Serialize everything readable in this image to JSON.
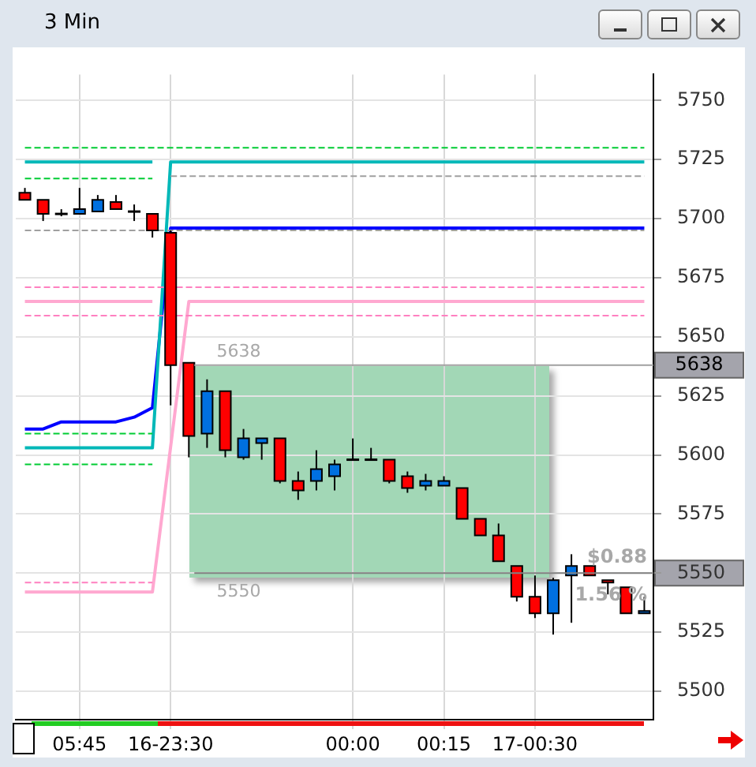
{
  "chart_data": {
    "type": "candlestick",
    "title": "3 Min",
    "categories": [
      null,
      null,
      null,
      "05:45",
      null,
      null,
      null,
      null,
      "16-23:30",
      null,
      null,
      null,
      null,
      null,
      null,
      null,
      null,
      null,
      "00:00",
      null,
      null,
      null,
      null,
      "00:15",
      null,
      null,
      null,
      null,
      "17-00:30",
      null,
      null,
      null,
      null,
      null,
      null
    ],
    "ohlc": [
      [
        5711,
        5713,
        5708,
        5708
      ],
      [
        5708,
        5708,
        5699,
        5702
      ],
      [
        5702,
        5704,
        5701,
        5702
      ],
      [
        5702,
        5713,
        5702,
        5704
      ],
      [
        5703,
        5710,
        5703,
        5708
      ],
      [
        5707,
        5710,
        5704,
        5704
      ],
      [
        5703,
        5706,
        5699,
        5703
      ],
      [
        5702,
        5702,
        5692,
        5695
      ],
      [
        5694,
        5695,
        5621,
        5638
      ],
      [
        5639,
        5639,
        5599,
        5608
      ],
      [
        5609,
        5632,
        5603,
        5627
      ],
      [
        5627,
        5627,
        5599,
        5602
      ],
      [
        5599,
        5611,
        5598,
        5607
      ],
      [
        5605,
        5607,
        5598,
        5607
      ],
      [
        5607,
        5607,
        5588,
        5589
      ],
      [
        5589,
        5593,
        5581,
        5585
      ],
      [
        5589,
        5602,
        5585,
        5594
      ],
      [
        5591,
        5598,
        5585,
        5596
      ],
      [
        5598,
        5607,
        5598,
        5598
      ],
      [
        5598,
        5603,
        5598,
        5598
      ],
      [
        5598,
        5598,
        5588,
        5589
      ],
      [
        5591,
        5593,
        5584,
        5586
      ],
      [
        5587,
        5592,
        5585,
        5589
      ],
      [
        5587,
        5591,
        5587,
        5589
      ],
      [
        5586,
        5586,
        5573,
        5573
      ],
      [
        5573,
        5573,
        5566,
        5566
      ],
      [
        5566,
        5571,
        5555,
        5555
      ],
      [
        5553,
        5553,
        5538,
        5540
      ],
      [
        5540,
        5549,
        5531,
        5533
      ],
      [
        5533,
        5548,
        5524,
        5547
      ],
      [
        5549,
        5558,
        5529,
        5553
      ],
      [
        5553,
        5553,
        5549,
        5549
      ],
      [
        5547,
        5547,
        5541,
        5546
      ],
      [
        5544,
        5544,
        5533,
        5533
      ],
      [
        5533,
        5540,
        5533,
        5534
      ]
    ],
    "series": [
      {
        "type": "line",
        "line_style": "dashed",
        "color": "#00cc33",
        "values": [
          5730,
          5730,
          5730,
          5730,
          5730,
          5730,
          5730,
          5730,
          5730,
          5730,
          5730,
          5730,
          5730,
          5730,
          5730,
          5730,
          5730,
          5730,
          5730,
          5730,
          5730,
          5730,
          5730,
          5730,
          5730,
          5730,
          5730,
          5730,
          5730,
          5730,
          5730,
          5730,
          5730,
          5730,
          5730
        ]
      },
      {
        "type": "line",
        "line_style": "dashed",
        "color": "#00cc33",
        "values": [
          5717,
          5717,
          5717,
          5717,
          5717,
          5717,
          5717,
          5717,
          null,
          null,
          null,
          null,
          null,
          null,
          null,
          null,
          null,
          null,
          null,
          null,
          null,
          null,
          null,
          null,
          null,
          null,
          null,
          null,
          null,
          null,
          null,
          null,
          null,
          null,
          null
        ]
      },
      {
        "type": "line",
        "line_style": "dashed",
        "color": "#00cc33",
        "values": [
          5609,
          5609,
          5609,
          5609,
          5609,
          5609,
          5609,
          5609,
          null,
          null,
          null,
          null,
          null,
          null,
          null,
          null,
          null,
          null,
          null,
          null,
          null,
          null,
          null,
          null,
          null,
          null,
          null,
          null,
          null,
          null,
          null,
          null,
          null,
          null,
          null
        ]
      },
      {
        "type": "line",
        "line_style": "dashed",
        "color": "#00cc33",
        "values": [
          5596,
          5596,
          5596,
          5596,
          5596,
          5596,
          5596,
          5596,
          null,
          null,
          null,
          null,
          null,
          null,
          null,
          null,
          null,
          null,
          null,
          null,
          null,
          null,
          null,
          null,
          null,
          null,
          null,
          null,
          null,
          null,
          null,
          null,
          null,
          null,
          null
        ]
      },
      {
        "type": "line",
        "line_style": "dashed",
        "color": "#a0a0a0",
        "values": [
          null,
          null,
          null,
          null,
          null,
          null,
          null,
          null,
          5718,
          5718,
          5718,
          5718,
          5718,
          5718,
          5718,
          5718,
          5718,
          5718,
          5718,
          5718,
          5718,
          5718,
          5718,
          5718,
          5718,
          5718,
          5718,
          5718,
          5718,
          5718,
          5718,
          5718,
          5718,
          5718,
          5718
        ]
      },
      {
        "type": "line",
        "line_style": "dashed",
        "color": "#a0a0a0",
        "values": [
          5695,
          5695,
          5695,
          5695,
          5695,
          5695,
          5695,
          5695,
          5695,
          5695,
          5695,
          5695,
          5695,
          5695,
          5695,
          5695,
          5695,
          5695,
          5695,
          5695,
          5695,
          5695,
          5695,
          5695,
          5695,
          5695,
          5695,
          5695,
          5695,
          5695,
          5695,
          5695,
          5695,
          5695,
          5695
        ]
      },
      {
        "type": "line",
        "line_style": "dashed",
        "color": "#ff80c0",
        "values": [
          5671,
          5671,
          5671,
          5671,
          5671,
          5671,
          5671,
          5671,
          null,
          5671,
          5671,
          5671,
          5671,
          5671,
          5671,
          5671,
          5671,
          5671,
          5671,
          5671,
          5671,
          5671,
          5671,
          5671,
          5671,
          5671,
          5671,
          5671,
          5671,
          5671,
          5671,
          5671,
          5671,
          5671,
          5671
        ]
      },
      {
        "type": "line",
        "line_style": "dashed",
        "color": "#ff80c0",
        "values": [
          5659,
          5659,
          5659,
          5659,
          5659,
          5659,
          5659,
          5659,
          null,
          5659,
          5659,
          5659,
          5659,
          5659,
          5659,
          5659,
          5659,
          5659,
          5659,
          5659,
          5659,
          5659,
          5659,
          5659,
          5659,
          5659,
          5659,
          5659,
          5659,
          5659,
          5659,
          5659,
          5659,
          5659,
          5659
        ]
      },
      {
        "type": "line",
        "line_style": "dashed",
        "color": "#ff80c0",
        "values": [
          5546,
          5546,
          5546,
          5546,
          5546,
          5546,
          5546,
          5546,
          null,
          null,
          null,
          null,
          null,
          null,
          null,
          null,
          null,
          null,
          null,
          null,
          null,
          null,
          null,
          null,
          null,
          null,
          null,
          null,
          null,
          null,
          null,
          null,
          null,
          null,
          null
        ]
      },
      {
        "type": "line",
        "line_style": "solid",
        "color": "#ffa8d0",
        "values": [
          5665,
          5665,
          5665,
          5665,
          5665,
          5665,
          5665,
          5665,
          null,
          null,
          null,
          null,
          null,
          null,
          null,
          null,
          null,
          null,
          null,
          null,
          null,
          null,
          null,
          null,
          null,
          null,
          null,
          null,
          null,
          null,
          null,
          null,
          null,
          null,
          null
        ]
      },
      {
        "type": "line",
        "line_style": "solid",
        "color": "#ffa8d0",
        "values": [
          5542,
          5542,
          5542,
          5542,
          5542,
          5542,
          5542,
          5542,
          null,
          5665,
          5665,
          5665,
          5665,
          5665,
          5665,
          5665,
          5665,
          5665,
          5665,
          5665,
          5665,
          5665,
          5665,
          5665,
          5665,
          5665,
          5665,
          5665,
          5665,
          5665,
          5665,
          5665,
          5665,
          5665,
          5665
        ]
      },
      {
        "type": "line",
        "line_style": "solid",
        "color": "#00b8b8",
        "values": [
          5724,
          5724,
          5724,
          5724,
          5724,
          5724,
          5724,
          5724,
          null,
          null,
          null,
          null,
          null,
          null,
          null,
          null,
          null,
          null,
          null,
          null,
          null,
          null,
          null,
          null,
          null,
          null,
          null,
          null,
          null,
          null,
          null,
          null,
          null,
          null,
          null
        ]
      },
      {
        "type": "line",
        "line_style": "solid",
        "color": "#00b8b8",
        "values": [
          5603,
          5603,
          5603,
          5603,
          5603,
          5603,
          5603,
          5603,
          5724,
          5724,
          5724,
          5724,
          5724,
          5724,
          5724,
          5724,
          5724,
          5724,
          5724,
          5724,
          5724,
          5724,
          5724,
          5724,
          5724,
          5724,
          5724,
          5724,
          5724,
          5724,
          5724,
          5724,
          5724,
          5724,
          5724
        ]
      },
      {
        "type": "line",
        "line_style": "solid",
        "color": "#0000ff",
        "values": [
          5611,
          5611,
          5614,
          5614,
          5614,
          5614,
          5616,
          5620,
          5696,
          5696,
          5696,
          5696,
          5696,
          5696,
          5696,
          5696,
          5696,
          5696,
          5696,
          5696,
          5696,
          5696,
          5696,
          5696,
          5696,
          5696,
          5696,
          5696,
          5696,
          5696,
          5696,
          5696,
          5696,
          5696,
          5696
        ]
      }
    ],
    "ylim": [
      5488,
      5761
    ],
    "yticks": [
      5500,
      5525,
      5550,
      5575,
      5600,
      5625,
      5650,
      5675,
      5700,
      5725,
      5750
    ],
    "ref_lines": [
      {
        "axis": "y",
        "value": 5638,
        "label": "5638",
        "color": "#a0a0a0"
      },
      {
        "axis": "y",
        "value": 5550,
        "color": "#808080"
      }
    ],
    "annotations": [
      {
        "text": "5638",
        "y": 5638
      },
      {
        "text": "5550",
        "y": 5550
      },
      "$0.88",
      "1.56 %"
    ],
    "grid": true,
    "legend": false,
    "marker": "none"
  }
}
